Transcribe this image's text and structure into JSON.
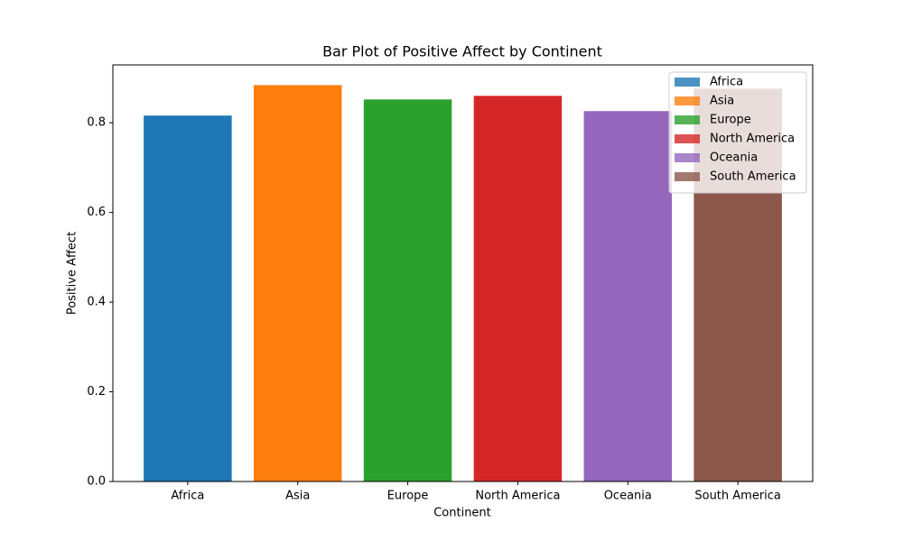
{
  "chart_data": {
    "type": "bar",
    "title": "Bar Plot of Positive Affect by Continent",
    "x_label": "Continent",
    "y_label": "Positive Affect",
    "categories": [
      "Africa",
      "Asia",
      "Europe",
      "North America",
      "Oceania",
      "South America"
    ],
    "values": [
      0.816,
      0.884,
      0.852,
      0.86,
      0.826,
      0.876
    ],
    "colors": [
      "#1f77b4",
      "#ff7f0e",
      "#2ca02c",
      "#d62728",
      "#9467bd",
      "#8c564b"
    ],
    "ylim": [
      0,
      0.929
    ],
    "yticks": [
      {
        "value": 0,
        "label": "0.0"
      },
      0.2,
      0.4,
      0.6,
      0.8
    ],
    "legend": "upper right"
  }
}
